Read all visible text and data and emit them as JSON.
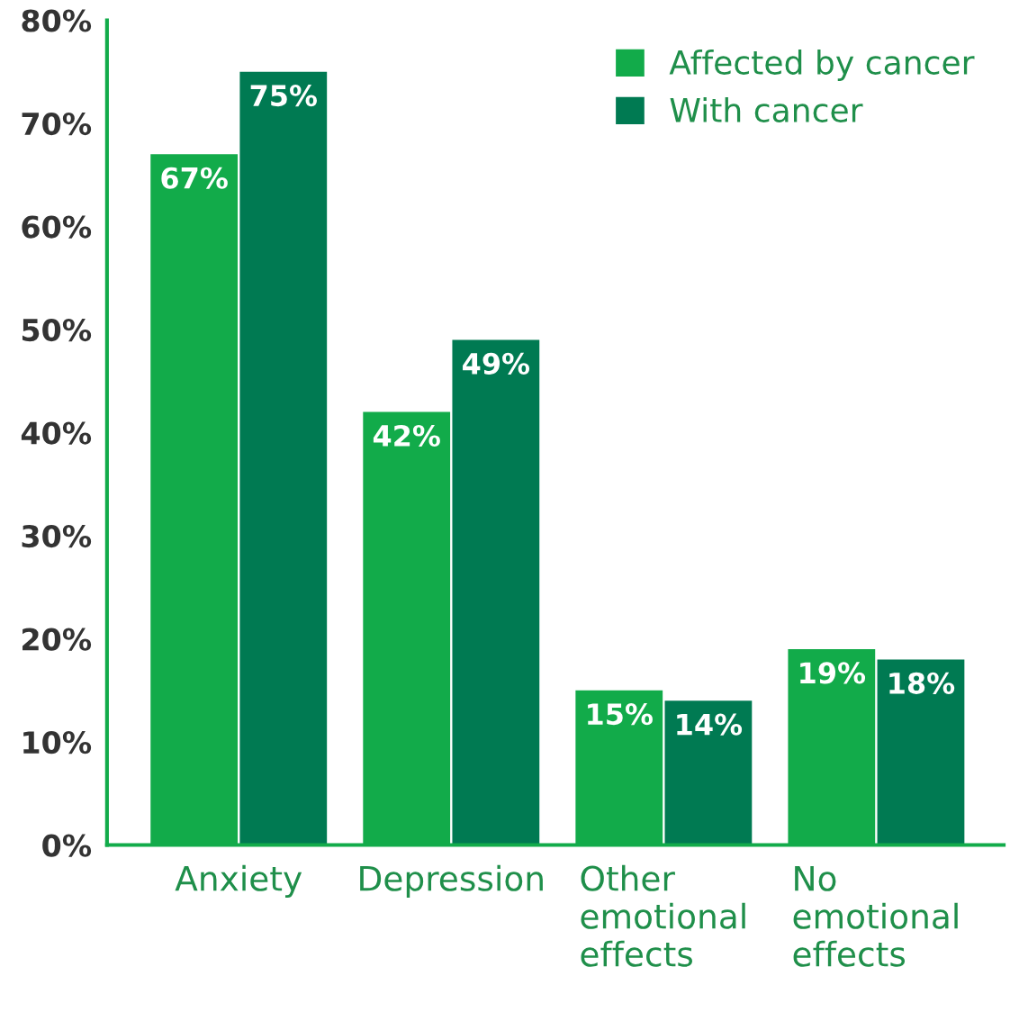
{
  "chart_data": {
    "type": "bar",
    "categories": [
      "Anxiety",
      "Depression",
      "Other\nemotional\neffects",
      "No\nemotional\neffects"
    ],
    "series": [
      {
        "name": "Affected by cancer",
        "color": "#12ab4a",
        "values": [
          67,
          42,
          15,
          19
        ],
        "value_labels": [
          "67%",
          "42%",
          "15%",
          "19%"
        ]
      },
      {
        "name": "With cancer",
        "color": "#007a52",
        "values": [
          75,
          49,
          14,
          18
        ],
        "value_labels": [
          "75%",
          "49%",
          "14%",
          "18%"
        ]
      }
    ],
    "ylim": [
      0,
      80
    ],
    "yticks": [
      {
        "value": 0,
        "label": "0%"
      },
      {
        "value": 10,
        "label": "10%"
      },
      {
        "value": 20,
        "label": "20%"
      },
      {
        "value": 30,
        "label": "30%"
      },
      {
        "value": 40,
        "label": "40%"
      },
      {
        "value": 50,
        "label": "50%"
      },
      {
        "value": 60,
        "label": "60%"
      },
      {
        "value": 70,
        "label": "70%"
      },
      {
        "value": 80,
        "label": "80%"
      }
    ],
    "grid": false,
    "legend": "top right"
  }
}
